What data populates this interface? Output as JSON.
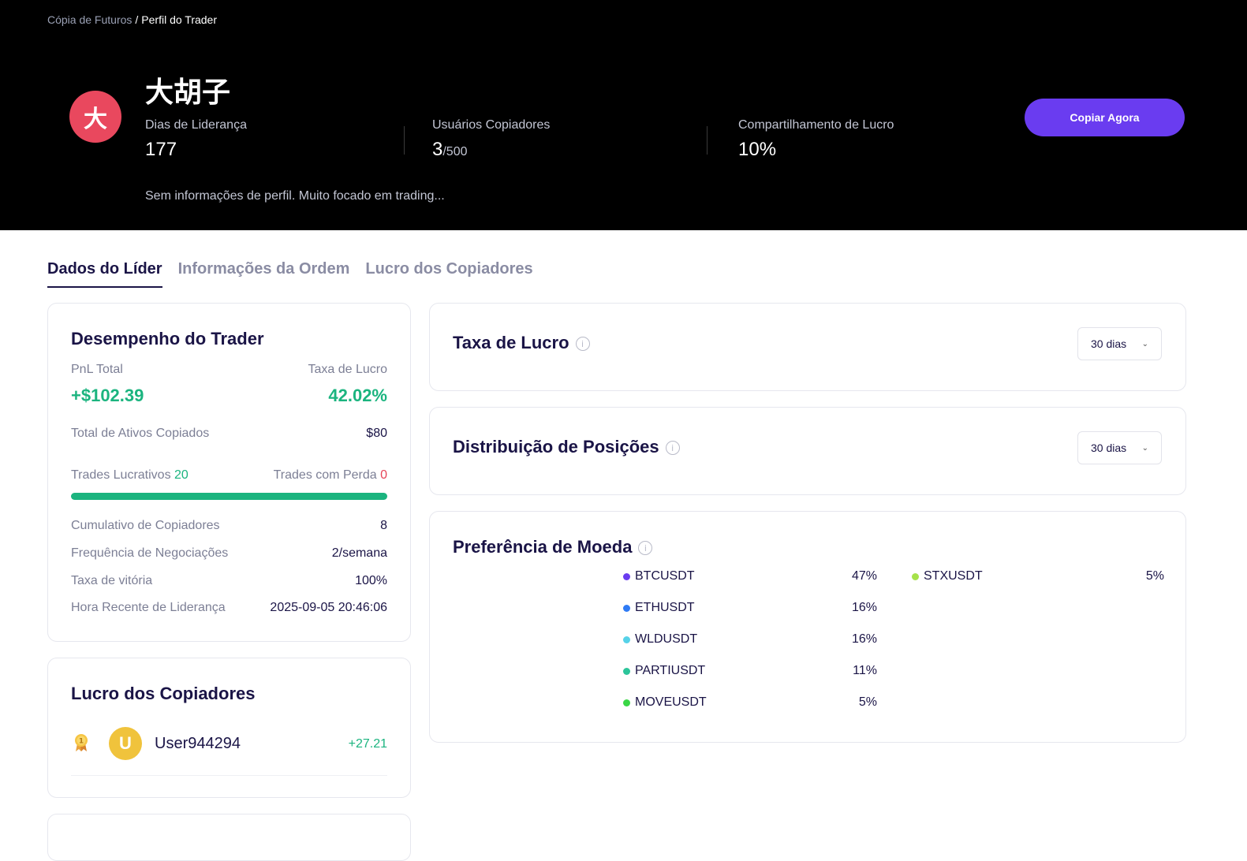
{
  "breadcrumb": {
    "parent": "Cópia de Futuros",
    "separator": "/",
    "current": "Perfil do Trader"
  },
  "trader": {
    "avatar_letter": "大",
    "name": "大胡子",
    "bio": "Sem informações de perfil. Muito focado em trading..."
  },
  "stats": {
    "lead_days_label": "Dias de Liderança",
    "lead_days_value": "177",
    "copiers_label": "Usuários Copiadores",
    "copiers_value": "3",
    "copiers_max": "/500",
    "profit_share_label": "Compartilhamento de Lucro",
    "profit_share_value": "10%"
  },
  "copy_button": "Copiar Agora",
  "tabs": [
    "Dados do Líder",
    "Informações da Ordem",
    "Lucro dos Copiadores"
  ],
  "performance": {
    "title": "Desempenho do Trader",
    "pnl_label": "PnL Total",
    "pnl_value": "+$102.39",
    "rate_label": "Taxa de Lucro",
    "rate_value": "42.02%",
    "assets_label": "Total de Ativos Copiados",
    "assets_value": "$80",
    "win_trades_label": "Trades Lucrativos",
    "win_trades_value": "20",
    "loss_trades_label": "Trades com Perda",
    "loss_trades_value": "0",
    "win_ratio": 1.0,
    "cum_copiers_label": "Cumulativo de Copiadores",
    "cum_copiers_value": "8",
    "frequency_label": "Frequência de Negociações",
    "frequency_value": "2/semana",
    "winrate_label": "Taxa de vitória",
    "winrate_value": "100%",
    "recent_label": "Hora Recente de Liderança",
    "recent_value": "2025-09-05 20:46:06"
  },
  "copier_profit": {
    "title": "Lucro dos Copiadores",
    "user_initial": "U",
    "user_name": "User944294",
    "user_profit": "+27.21"
  },
  "profit_rate_card": {
    "title": "Taxa de Lucro",
    "period": "30 dias"
  },
  "positions_card": {
    "title": "Distribuição de Posições",
    "period": "30 dias"
  },
  "currency_pref": {
    "title": "Preferência de Moeda",
    "items": [
      {
        "symbol": "BTCUSDT",
        "pct": "47%",
        "color": "#6a3cf0"
      },
      {
        "symbol": "ETHUSDT",
        "pct": "16%",
        "color": "#2f7bf5"
      },
      {
        "symbol": "WLDUSDT",
        "pct": "16%",
        "color": "#56d2e8"
      },
      {
        "symbol": "PARTIUSDT",
        "pct": "11%",
        "color": "#2cc59a"
      },
      {
        "symbol": "MOVEUSDT",
        "pct": "5%",
        "color": "#3ad646"
      },
      {
        "symbol": "STXUSDT",
        "pct": "5%",
        "color": "#a6e24a"
      }
    ]
  },
  "icons": {
    "info": "info-icon",
    "chevron": "chevron-down-icon",
    "medal": "medal-icon"
  }
}
